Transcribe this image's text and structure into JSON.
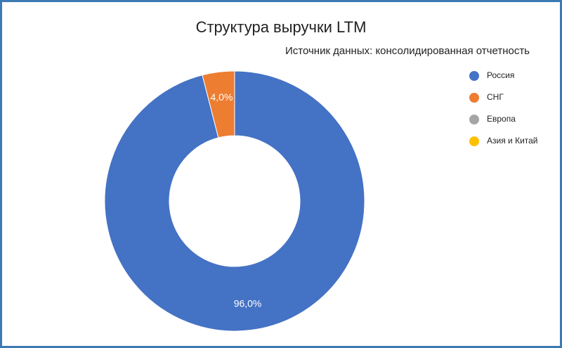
{
  "chart_data": {
    "type": "donut",
    "title": "Структура выручки LTM",
    "subtitle": "Источник данных: консолидированная отчетность",
    "categories": [
      "Россия",
      "СНГ",
      "Европа",
      "Азия и Китай"
    ],
    "values": [
      96.0,
      4.0,
      0,
      0
    ],
    "value_labels": [
      "96,0%",
      "4,0%",
      null,
      null
    ],
    "colors": [
      "#4472c4",
      "#ed7d31",
      "#a5a5a5",
      "#ffc000"
    ],
    "legend": "right"
  }
}
